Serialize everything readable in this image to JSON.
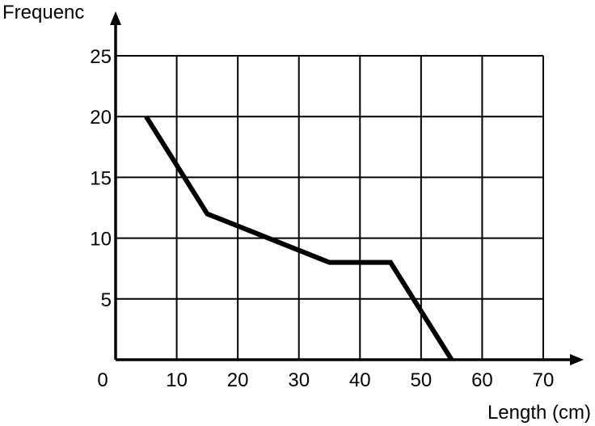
{
  "chart_data": {
    "type": "line",
    "xlabel": "Length (cm)",
    "ylabel": "Frequenc",
    "xlim": [
      0,
      70
    ],
    "ylim": [
      0,
      25
    ],
    "xticks": [
      10,
      20,
      30,
      40,
      50,
      60,
      70
    ],
    "yticks": [
      5,
      10,
      15,
      20,
      25
    ],
    "origin_label": "0",
    "grid": true,
    "series": [
      {
        "x": [
          5,
          15,
          35,
          45,
          55
        ],
        "y": [
          20,
          12,
          8,
          8,
          0
        ]
      }
    ]
  }
}
